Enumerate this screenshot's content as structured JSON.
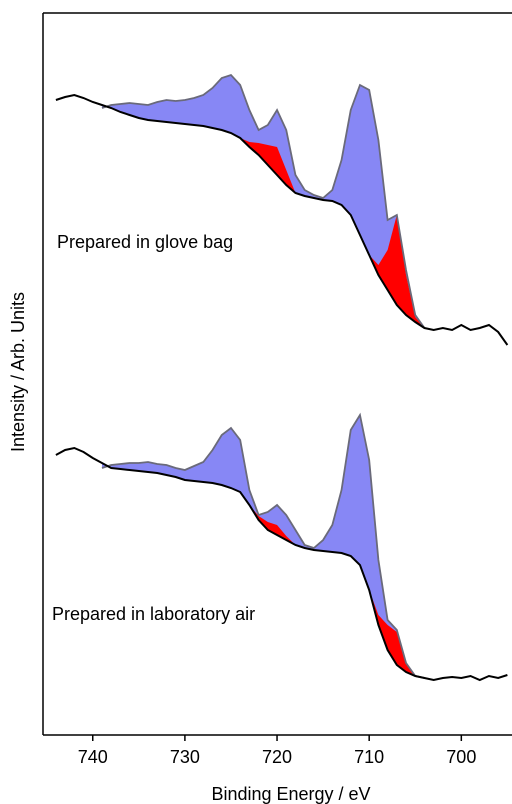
{
  "chart_data": {
    "type": "area",
    "xlabel": "Binding Energy / eV",
    "ylabel": "Intensity / Arb. Units",
    "xlim": [
      745.4,
      694.5
    ],
    "ylim": [
      0,
      722
    ],
    "xticks": [
      740,
      730,
      720,
      710,
      700
    ],
    "x": [
      744,
      743,
      742,
      741,
      740,
      739,
      738,
      737,
      736,
      735,
      734,
      733,
      732,
      731,
      730,
      729,
      728,
      727,
      726,
      725,
      724,
      723,
      722,
      721,
      720,
      719,
      718,
      717,
      716,
      715,
      714,
      713,
      712,
      711,
      710,
      709,
      708,
      707,
      706,
      705,
      704,
      703,
      702,
      701,
      700,
      699,
      698,
      697,
      696,
      695
    ],
    "panels": [
      {
        "label": "Prepared in glove bag",
        "background": {
          "color": "#000000",
          "values": [
            635,
            638,
            640,
            637,
            633,
            630,
            627,
            623,
            620,
            617,
            615,
            614,
            613,
            612,
            611,
            610,
            609,
            607,
            605,
            602,
            597,
            588,
            580,
            570,
            560,
            550,
            542,
            539,
            537,
            535,
            534,
            530,
            520,
            500,
            480,
            460,
            445,
            430,
            420,
            413,
            407,
            405,
            407,
            405,
            410,
            405,
            407,
            410,
            403,
            390
          ]
        },
        "envelope": {
          "color": "#6a6a7a",
          "fill": "#8787f5",
          "values": [
            null,
            null,
            null,
            null,
            null,
            627,
            630,
            631,
            632,
            631,
            630,
            633,
            635,
            634,
            635,
            637,
            640,
            647,
            657,
            660,
            650,
            625,
            605,
            610,
            625,
            605,
            560,
            545,
            540,
            537,
            545,
            575,
            625,
            650,
            645,
            595,
            515,
            520,
            465,
            420,
            407,
            null,
            null,
            null,
            null,
            null,
            null,
            null,
            null,
            null
          ]
        },
        "component": {
          "color": "#ff0000",
          "values": [
            null,
            null,
            null,
            null,
            null,
            null,
            null,
            null,
            null,
            null,
            null,
            null,
            null,
            null,
            null,
            null,
            null,
            null,
            null,
            null,
            0,
            5,
            12,
            20,
            28,
            15,
            0,
            null,
            null,
            null,
            null,
            null,
            null,
            null,
            0,
            10,
            40,
            90,
            40,
            5,
            0,
            null,
            null,
            null,
            null,
            null,
            null,
            null,
            null,
            null
          ]
        }
      },
      {
        "label": "Prepared in laboratory air",
        "background": {
          "color": "#000000",
          "values": [
            280,
            285,
            287,
            283,
            277,
            272,
            267,
            266,
            265,
            264,
            263,
            262,
            260,
            258,
            255,
            254,
            253,
            252,
            250,
            247,
            243,
            230,
            215,
            205,
            200,
            195,
            190,
            187,
            185,
            184,
            183,
            182,
            179,
            170,
            145,
            110,
            85,
            70,
            63,
            59,
            57,
            55,
            57,
            58,
            57,
            59,
            55,
            59,
            57,
            60
          ]
        },
        "envelope": {
          "color": "#6a6a7a",
          "fill": "#8787f5",
          "values": [
            null,
            null,
            null,
            null,
            null,
            267,
            270,
            271,
            272,
            272,
            273,
            271,
            270,
            267,
            265,
            269,
            273,
            285,
            300,
            307,
            295,
            245,
            220,
            223,
            230,
            220,
            205,
            190,
            187,
            195,
            210,
            245,
            305,
            320,
            275,
            175,
            115,
            105,
            72,
            59,
            57,
            null,
            null,
            null,
            null,
            null,
            null,
            null,
            null,
            null
          ]
        },
        "component": {
          "color": "#ff0000",
          "values": [
            null,
            null,
            null,
            null,
            null,
            null,
            null,
            null,
            null,
            null,
            null,
            null,
            null,
            null,
            null,
            null,
            null,
            null,
            null,
            null,
            null,
            0,
            4,
            8,
            10,
            4,
            0,
            null,
            null,
            null,
            null,
            null,
            null,
            null,
            0,
            10,
            25,
            33,
            8,
            0,
            null,
            null,
            null,
            null,
            null,
            null,
            null,
            null,
            null,
            null
          ]
        }
      }
    ]
  }
}
